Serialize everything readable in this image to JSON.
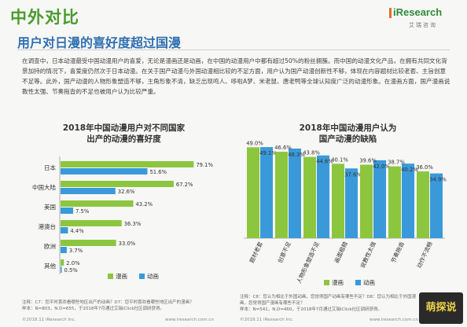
{
  "header": {
    "section_title": "中外对比",
    "brand": "iResearch",
    "brand_sub": "艾瑞咨询",
    "main_title": "用户对日漫的喜好度超过国漫"
  },
  "body_text": "在调查中，日本动漫最受中国动漫用户的喜爱，无论是漫画还是动画，在中国的动漫用户中都有超过50%的粉丝拥簇。而中国的动漫文化产品，在拥有共同文化背景加持的情况下，喜爱度仍然次于日本动漫。在关于国产动漫与外国动漫相比较的不足方面，用户认为国产动漫创新性不够，体现在内容题材比较老套、主旨创意不足等。此外，国产动漫的人物形象塑造不够，主角形象不清，缺乏出现鸣人、哆啦A梦、米老鼠、唐老鸭等全球认知度广泛的动漫形象。在漫画方面，国产漫画说教性太强、节奏拖沓的不足也被用户认为比较严重。",
  "footnotes": {
    "left_1": "注释：C7：您平时喜欢看哪些地区出产的动画？D7：您平时喜欢看哪些地区出产的漫画？",
    "left_2": "样本：N=803，N.D=655，于2018年7月通过艾瑞iClick社区调研获得。",
    "right_1": "注释：C8：您认为相比于外国动画，您觉得国产动画有哪些不足？D8：您认为相比于外国漫画，您觉得国产漫画有哪些不足？",
    "right_2": "样本：N=541，N.D=460，于2018年7月通过艾瑞iClick社区调研获得。",
    "copyright_left": "©2018.11 iResearch Inc.",
    "copyright_mid": "www.iresearch.com.cn",
    "copyright_right": "©2018.11 iResearch Inc.",
    "copyright_right2": "www.iresearch.com.cn"
  },
  "watermark": "萌探说",
  "colors": {
    "manhua": "#8cc63f",
    "donghua": "#3a9ad9",
    "section_title": "#4a9b2c",
    "title_blue": "#2f6fb0"
  },
  "chart_data": [
    {
      "type": "bar",
      "orientation": "horizontal",
      "title": "2018年中国动漫用户对不同国家出产的动漫的喜好度",
      "title_lines": [
        "2018年中国动漫用户对不同国家",
        "出产的动漫的喜好度"
      ],
      "categories": [
        "日本",
        "中国大陆",
        "美国",
        "港澳台",
        "欧洲",
        "其他"
      ],
      "series": [
        {
          "name": "漫画",
          "values": [
            79.1,
            67.2,
            43.2,
            36.3,
            33.0,
            2.0
          ],
          "labels": [
            "79.1%",
            "67.2%",
            "43.2%",
            "36.3%",
            "33.0%",
            "2.0%"
          ]
        },
        {
          "name": "动画",
          "values": [
            51.6,
            32.6,
            7.5,
            4.4,
            3.7,
            0.5
          ],
          "labels": [
            "51.6%",
            "32.6%",
            "7.5%",
            "4.4%",
            "3.7%",
            "0.5%"
          ]
        }
      ],
      "legend": "bottom"
    },
    {
      "type": "bar",
      "title": "2018年中国动漫用户认为国产动漫的缺陷",
      "title_lines": [
        "2018年中国动漫用户认为",
        "国产动漫的缺陷"
      ],
      "categories": [
        "题材老套",
        "创意不足",
        "人物形象塑造不足",
        "画面粗糙",
        "说教性太强",
        "节奏拖沓",
        "动作不流畅"
      ],
      "series": [
        {
          "name": "漫画",
          "values": [
            49.0,
            46.6,
            43.8,
            40.1,
            39.6,
            38.7,
            36.0
          ],
          "labels": [
            "49.0%",
            "46.6%",
            "43.8%",
            "40.1%",
            "39.6%",
            "38.7%",
            "36.0%"
          ]
        },
        {
          "name": "动画",
          "values": [
            49.1,
            48.3,
            44.6,
            37.6,
            42.0,
            40.2,
            34.9
          ],
          "labels": [
            "49.1%",
            "48.3%",
            "44.6%",
            "37.6%",
            "42.0%",
            "40.2%",
            "34.9%"
          ]
        }
      ],
      "legend": "bottom"
    }
  ]
}
